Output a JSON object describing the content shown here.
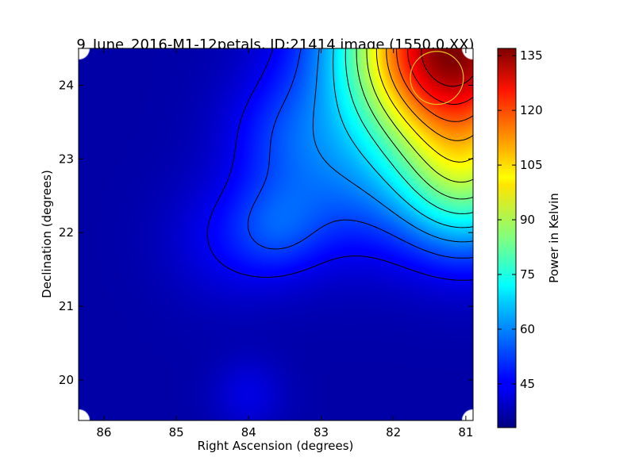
{
  "chart_data": {
    "type": "heatmap",
    "title": "9_June_2016-M1-12petals, ID:21414 image (1550.0,XX)",
    "xlabel": "Right Ascension (degrees)",
    "ylabel": "Declination (degrees)",
    "xlim": [
      86.35,
      80.9
    ],
    "ylim": [
      19.45,
      24.5
    ],
    "x_axis_inverted": true,
    "x_ticks": [
      86,
      85,
      84,
      83,
      82,
      81
    ],
    "y_ticks": [
      20,
      21,
      22,
      23,
      24
    ],
    "colorbar": {
      "label": "Power in Kelvin",
      "colormap": "jet",
      "range": [
        33,
        137
      ],
      "ticks": [
        45,
        60,
        75,
        90,
        105,
        120,
        135
      ]
    },
    "contour_levels_count": 12,
    "source_marker": {
      "ra": 81.4,
      "dec": 24.1,
      "radius_deg": 0.36,
      "color": "#e8c020"
    },
    "grid": false,
    "legend": "none",
    "field": {
      "background_K": 37,
      "components": [
        {
          "ra": 81.2,
          "dec": 24.5,
          "amp_K": 100,
          "sigma_deg": 1.05
        },
        {
          "ra": 81.0,
          "dec": 22.6,
          "amp_K": 32,
          "sigma_deg": 0.7
        },
        {
          "ra": 83.6,
          "dec": 22.05,
          "amp_K": 10,
          "sigma_deg": 0.45
        },
        {
          "ra": 84.3,
          "dec": 21.9,
          "amp_K": 7,
          "sigma_deg": 0.6
        },
        {
          "ra": 82.8,
          "dec": 22.5,
          "amp_K": 10,
          "sigma_deg": 0.7
        },
        {
          "ra": 83.5,
          "dec": 23.3,
          "amp_K": 10,
          "sigma_deg": 0.6
        },
        {
          "ra": 84.0,
          "dec": 19.8,
          "amp_K": 6,
          "sigma_deg": 0.35
        }
      ]
    }
  }
}
